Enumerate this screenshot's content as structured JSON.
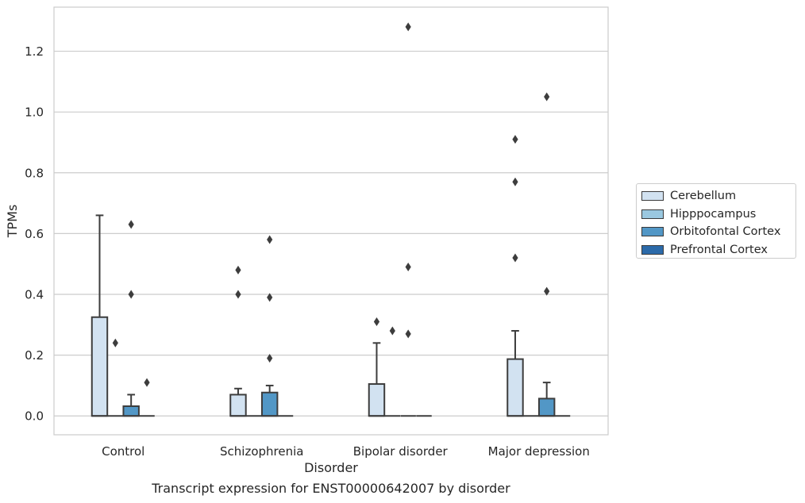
{
  "chart_data": {
    "type": "box",
    "title": "",
    "caption": "Transcript expression for ENST00000642007 by disorder",
    "xlabel": "Disorder",
    "ylabel": "TPMs",
    "categories": [
      "Control",
      "Schizophrenia",
      "Bipolar disorder",
      "Major depression"
    ],
    "ylim": [
      -0.062,
      1.345
    ],
    "yticks": [
      "0.0",
      "0.2",
      "0.4",
      "0.6",
      "0.8",
      "1.0",
      "1.2"
    ],
    "ytick_values": [
      0.0,
      0.2,
      0.4,
      0.6,
      0.8,
      1.0,
      1.2
    ],
    "grid": "horizontal",
    "legend_position": "outside-right",
    "series": [
      {
        "name": "Cerebellum",
        "color": "#d2e2f1",
        "boxes": [
          {
            "q1": 0.0,
            "median": 0.0,
            "q3": 0.325,
            "whisker_low": 0.0,
            "whisker_high": 0.66,
            "outliers": []
          },
          {
            "q1": 0.0,
            "median": 0.0,
            "q3": 0.07,
            "whisker_low": 0.0,
            "whisker_high": 0.09,
            "outliers": [
              0.4,
              0.48
            ]
          },
          {
            "q1": 0.0,
            "median": 0.0,
            "q3": 0.105,
            "whisker_low": 0.0,
            "whisker_high": 0.24,
            "outliers": [
              0.31
            ]
          },
          {
            "q1": 0.0,
            "median": 0.0,
            "q3": 0.187,
            "whisker_low": 0.0,
            "whisker_high": 0.28,
            "outliers": [
              0.52,
              0.77,
              0.91
            ]
          }
        ]
      },
      {
        "name": "Hipppocampus",
        "color": "#9ac8e0",
        "boxes": [
          {
            "q1": 0.0,
            "median": 0.0,
            "q3": 0.0,
            "whisker_low": 0.0,
            "whisker_high": 0.0,
            "outliers": [
              0.24
            ]
          },
          {
            "q1": 0.0,
            "median": 0.0,
            "q3": 0.0,
            "whisker_low": 0.0,
            "whisker_high": 0.0,
            "outliers": []
          },
          {
            "q1": 0.0,
            "median": 0.0,
            "q3": 0.0,
            "whisker_low": 0.0,
            "whisker_high": 0.0,
            "outliers": [
              0.28
            ]
          },
          {
            "q1": 0.0,
            "median": 0.0,
            "q3": 0.0,
            "whisker_low": 0.0,
            "whisker_high": 0.0,
            "outliers": []
          }
        ]
      },
      {
        "name": "Orbitofontal Cortex",
        "color": "#5297c6",
        "boxes": [
          {
            "q1": 0.0,
            "median": 0.0,
            "q3": 0.032,
            "whisker_low": 0.0,
            "whisker_high": 0.07,
            "outliers": [
              0.4,
              0.63
            ]
          },
          {
            "q1": 0.0,
            "median": 0.0,
            "q3": 0.077,
            "whisker_low": 0.0,
            "whisker_high": 0.1,
            "outliers": [
              0.19,
              0.39,
              0.58
            ]
          },
          {
            "q1": 0.0,
            "median": 0.0,
            "q3": 0.0,
            "whisker_low": 0.0,
            "whisker_high": 0.0,
            "outliers": [
              0.27,
              0.49,
              1.28
            ]
          },
          {
            "q1": 0.0,
            "median": 0.0,
            "q3": 0.057,
            "whisker_low": 0.0,
            "whisker_high": 0.11,
            "outliers": [
              0.41,
              1.05
            ]
          }
        ]
      },
      {
        "name": "Prefrontal Cortex",
        "color": "#2c6aa9",
        "boxes": [
          {
            "q1": 0.0,
            "median": 0.0,
            "q3": 0.0,
            "whisker_low": 0.0,
            "whisker_high": 0.0,
            "outliers": [
              0.11
            ]
          },
          {
            "q1": 0.0,
            "median": 0.0,
            "q3": 0.0,
            "whisker_low": 0.0,
            "whisker_high": 0.0,
            "outliers": []
          },
          {
            "q1": 0.0,
            "median": 0.0,
            "q3": 0.0,
            "whisker_low": 0.0,
            "whisker_high": 0.0,
            "outliers": []
          },
          {
            "q1": 0.0,
            "median": 0.0,
            "q3": 0.0,
            "whisker_low": 0.0,
            "whisker_high": 0.0,
            "outliers": []
          }
        ]
      }
    ]
  }
}
